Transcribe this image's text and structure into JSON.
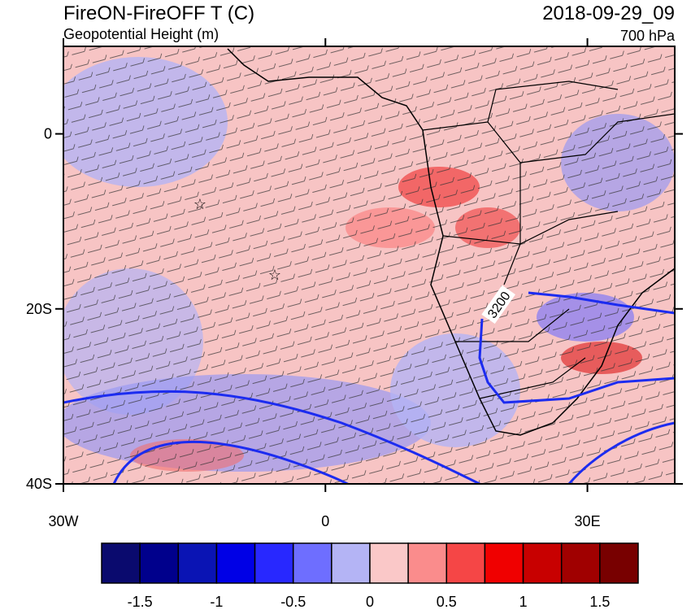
{
  "header": {
    "title": "FireON-FireOFF T (C)",
    "subtitle": "Geopotential Height (m)",
    "time": "2018-09-29_09",
    "level": "700 hPa"
  },
  "map": {
    "lon_range": [
      -30,
      40
    ],
    "lat_range": [
      -40,
      10
    ],
    "lon_ticks": [
      {
        "value": -30,
        "label": "30W"
      },
      {
        "value": 0,
        "label": "0"
      },
      {
        "value": 30,
        "label": "30E"
      }
    ],
    "lat_ticks": [
      {
        "value": 0,
        "label": "0"
      },
      {
        "value": -20,
        "label": "20S"
      },
      {
        "value": -40,
        "label": "40S"
      }
    ],
    "contour_label": "3200"
  },
  "colorbar": {
    "colors": [
      "#0a0a6e",
      "#00008c",
      "#0a14b4",
      "#0000e6",
      "#2828ff",
      "#6e6eff",
      "#b4b4f5",
      "#fac8c8",
      "#fa8c8c",
      "#f54646",
      "#f00000",
      "#c80000",
      "#a00000",
      "#780000"
    ],
    "labels": [
      -1.5,
      -1,
      -0.5,
      0,
      0.5,
      1,
      1.5
    ]
  }
}
